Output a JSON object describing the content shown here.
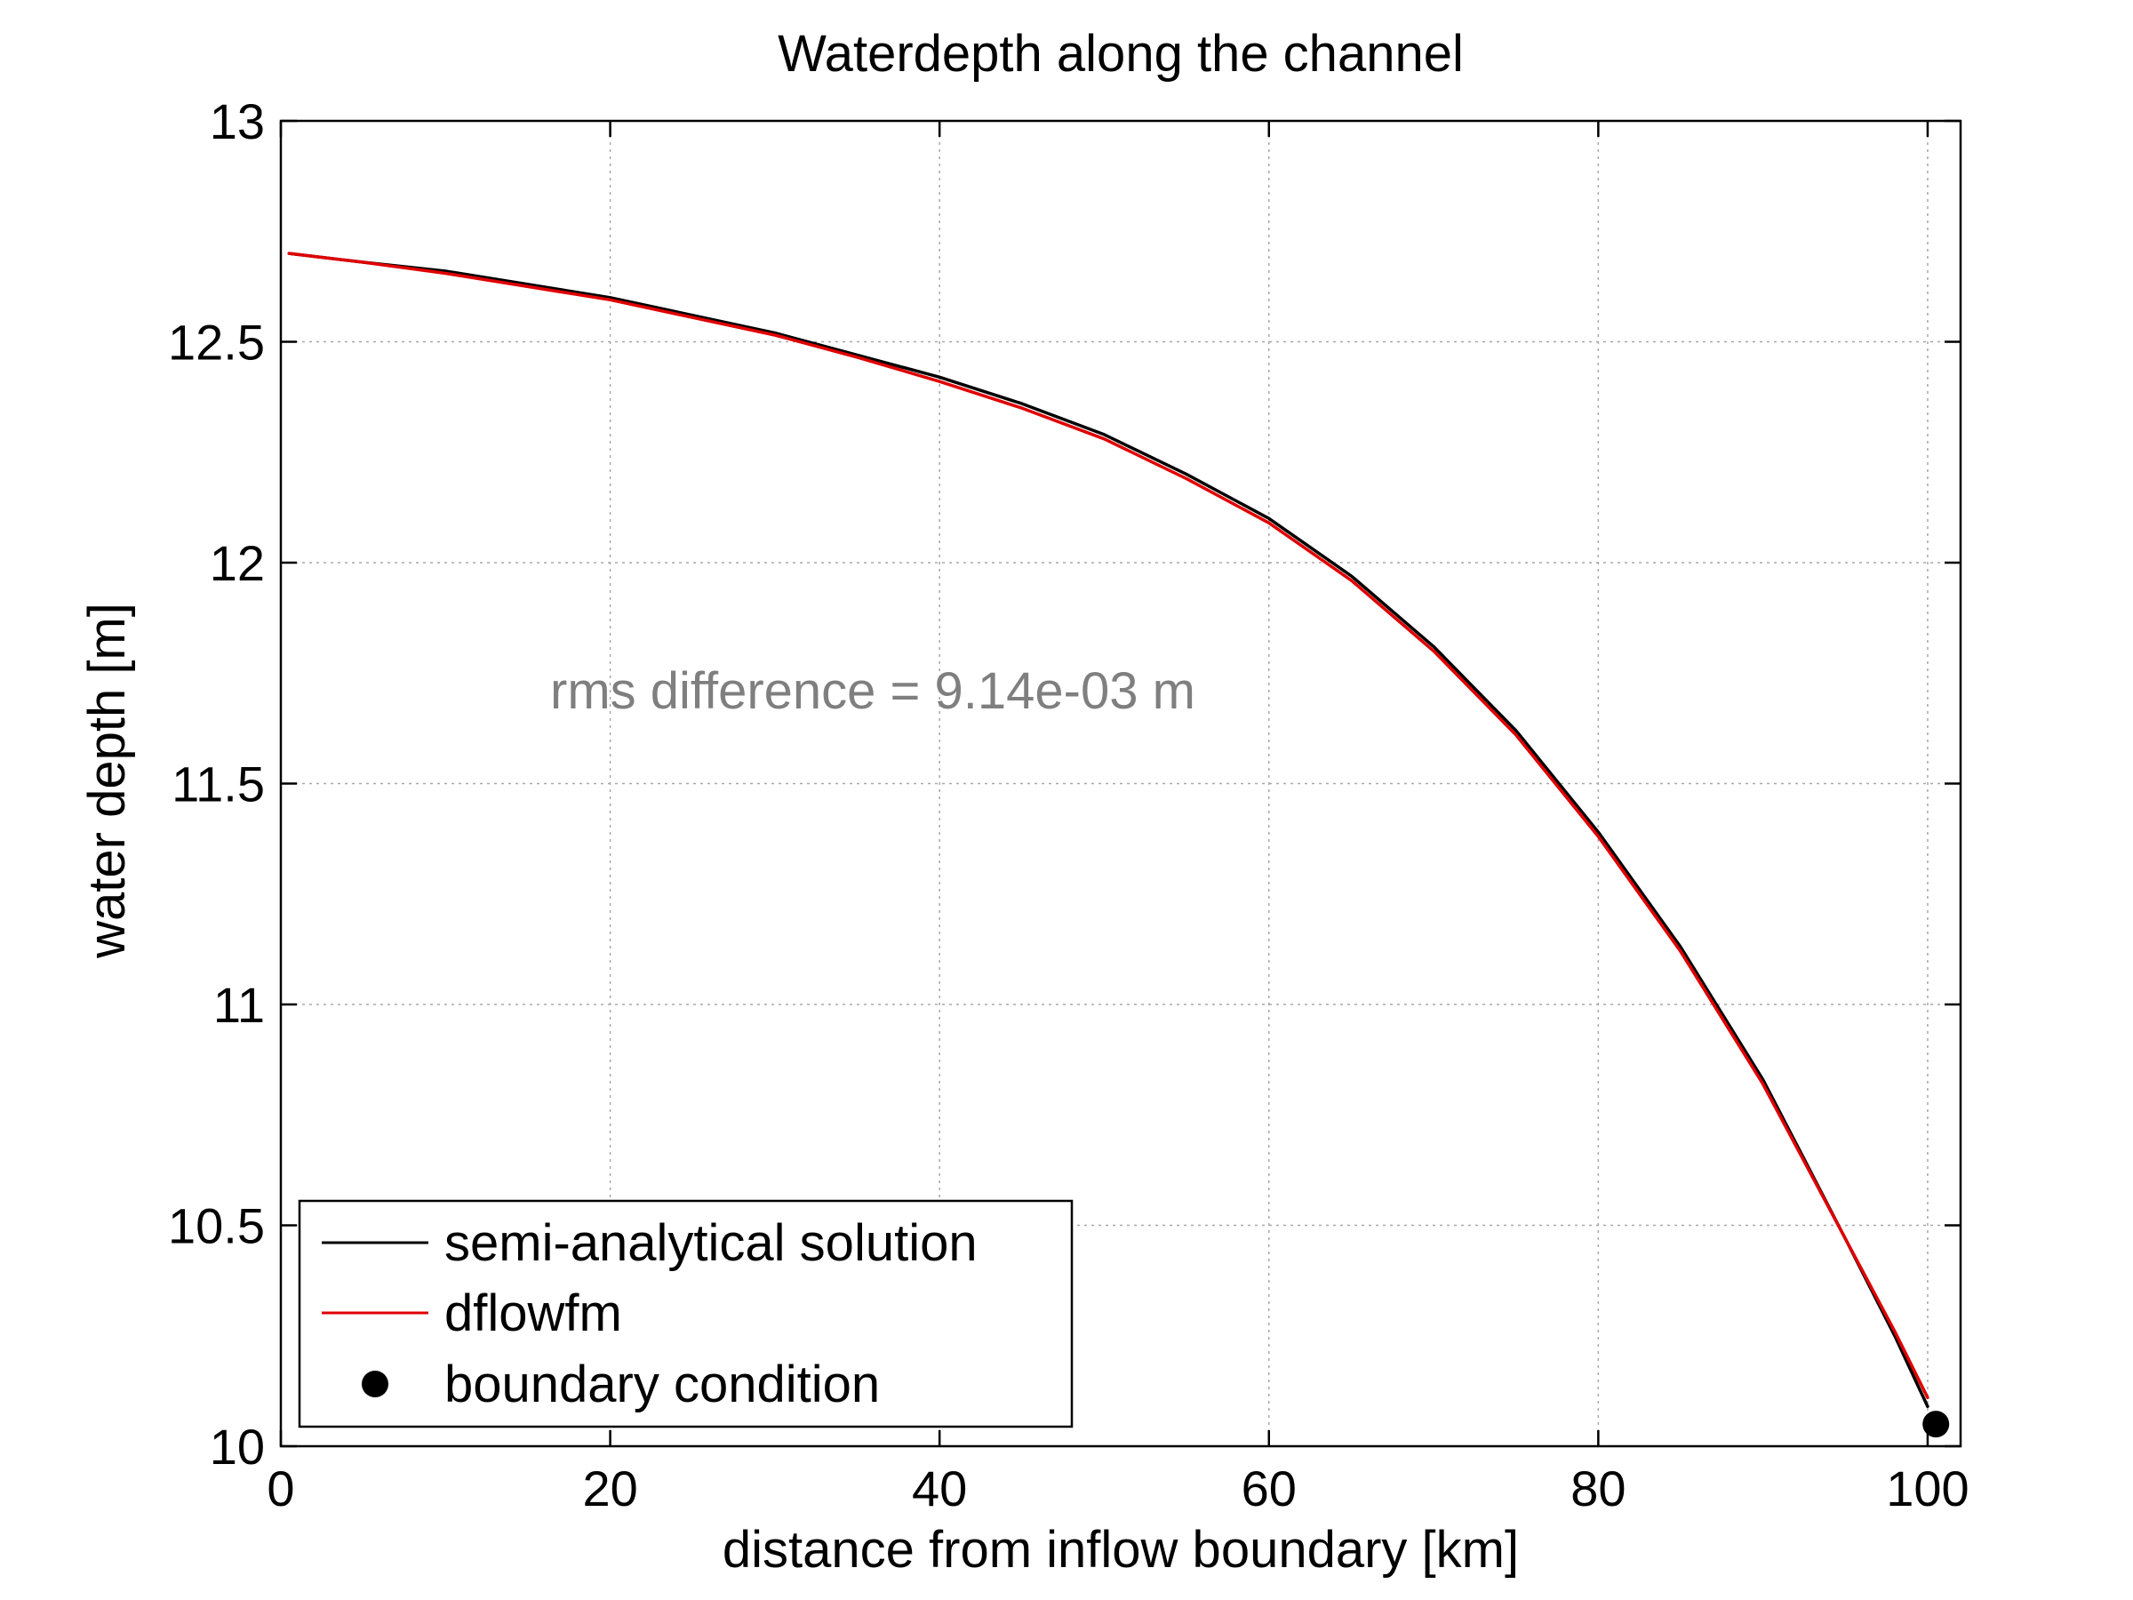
{
  "chart_data": {
    "type": "line",
    "title": "Waterdepth along the channel",
    "xlabel": "distance from inflow boundary [km]",
    "ylabel": "water depth [m]",
    "xlim": [
      0,
      102
    ],
    "ylim": [
      10,
      13
    ],
    "xticks": [
      0,
      20,
      40,
      60,
      80,
      100
    ],
    "yticks": [
      10,
      10.5,
      11,
      11.5,
      12,
      12.5,
      13
    ],
    "xtick_labels": [
      "0",
      "20",
      "40",
      "60",
      "80",
      "100"
    ],
    "ytick_labels": [
      "10",
      "10.5",
      "11",
      "11.5",
      "12",
      "12.5",
      "13"
    ],
    "grid": true,
    "legend_position": "bottom-left",
    "annotation": "rms difference = 9.14e-03 m",
    "colors": {
      "semi-analytical solution": "#000000",
      "dflowfm": "#e00000",
      "boundary condition": "#000000"
    },
    "series": [
      {
        "name": "semi-analytical solution",
        "style": "line",
        "x": [
          0.5,
          5,
          10,
          15,
          20,
          25,
          30,
          35,
          40,
          45,
          50,
          55,
          60,
          65,
          70,
          75,
          80,
          85,
          90,
          95,
          98,
          100
        ],
        "y": [
          12.7,
          12.68,
          12.66,
          12.63,
          12.6,
          12.56,
          12.52,
          12.47,
          12.42,
          12.36,
          12.29,
          12.2,
          12.1,
          11.97,
          11.81,
          11.62,
          11.39,
          11.13,
          10.83,
          10.47,
          10.25,
          10.09
        ]
      },
      {
        "name": "dflowfm",
        "style": "line",
        "x": [
          0.5,
          5,
          10,
          15,
          20,
          25,
          30,
          35,
          40,
          45,
          50,
          55,
          60,
          65,
          70,
          75,
          80,
          85,
          90,
          95,
          98,
          100
        ],
        "y": [
          12.7,
          12.68,
          12.655,
          12.625,
          12.595,
          12.555,
          12.515,
          12.465,
          12.41,
          12.35,
          12.28,
          12.19,
          12.09,
          11.96,
          11.8,
          11.61,
          11.38,
          11.12,
          10.82,
          10.47,
          10.26,
          10.11
        ]
      },
      {
        "name": "boundary condition",
        "style": "marker",
        "x": [
          100.5
        ],
        "y": [
          10.05
        ]
      }
    ]
  }
}
